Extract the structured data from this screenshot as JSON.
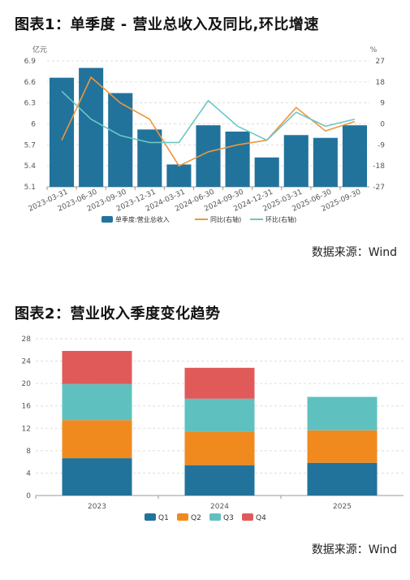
{
  "chart1_title": "图表1：单季度 - 营业总收入及同比,环比增速",
  "chart2_title": "图表2：营业收入季度变化趋势",
  "source1": "数据来源：Wind",
  "source2": "数据来源：Wind",
  "colors": {
    "bar": "#21739c",
    "yoy": "#f0963c",
    "qoq": "#6cc6c4",
    "q1": "#21739c",
    "q2": "#f08a1e",
    "q3": "#5fc1bf",
    "q4": "#e05a5a",
    "grid": "#dddddd"
  },
  "chart_data": [
    {
      "type": "bar",
      "categories": [
        "2023-03-31",
        "2023-06-30",
        "2023-09-30",
        "2023-12-31",
        "2024-03-31",
        "2024-06-30",
        "2024-09-30",
        "2024-12-31",
        "2025-03-31",
        "2025-06-30",
        "2025-09-30"
      ],
      "left_unit": "亿元",
      "right_unit": "%",
      "ylim": [
        5.1,
        6.9
      ],
      "yticks": [
        "6.9",
        "6.6",
        "6.3",
        "6",
        "5.7",
        "5.4",
        "5.1"
      ],
      "ylim_right": [
        -27,
        27
      ],
      "yticks_right": [
        "27",
        "18",
        "9",
        "0",
        "-9",
        "-18",
        "-27"
      ],
      "series": [
        {
          "name": "单季度:营业总收入",
          "kind": "bar",
          "axis": "left",
          "values": [
            6.66,
            6.8,
            6.44,
            5.92,
            5.42,
            5.98,
            5.89,
            5.52,
            5.84,
            5.8,
            5.98
          ]
        },
        {
          "name": "同比(右轴)",
          "kind": "line",
          "axis": "right",
          "values": [
            -7,
            20,
            9,
            2,
            -18,
            -12,
            -9,
            -7,
            7,
            -3,
            1
          ]
        },
        {
          "name": "环比(右轴)",
          "kind": "line",
          "axis": "right",
          "values": [
            14,
            2,
            -5,
            -8,
            -8,
            10,
            -1,
            -7,
            5,
            -1,
            2
          ]
        }
      ],
      "legend_position": "bottom",
      "grid": true
    },
    {
      "type": "bar",
      "stacked": true,
      "categories": [
        "2023",
        "2024",
        "2025"
      ],
      "ylim": [
        0,
        28
      ],
      "yticks": [
        "28",
        "24",
        "20",
        "16",
        "12",
        "8",
        "4",
        "0"
      ],
      "series": [
        {
          "name": "Q1",
          "values": [
            6.66,
            5.42,
            5.84
          ]
        },
        {
          "name": "Q2",
          "values": [
            6.8,
            5.98,
            5.8
          ]
        },
        {
          "name": "Q3",
          "values": [
            6.44,
            5.89,
            5.98
          ]
        },
        {
          "name": "Q4",
          "values": [
            5.92,
            5.52,
            null
          ]
        }
      ],
      "legend_position": "bottom",
      "grid": true
    }
  ]
}
